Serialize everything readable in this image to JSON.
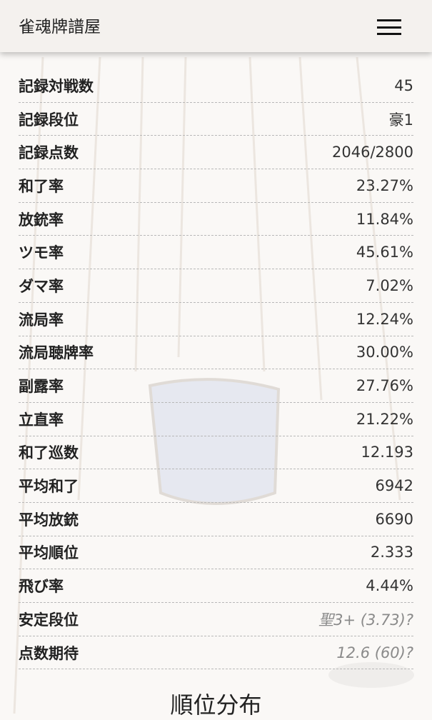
{
  "header": {
    "title": "雀魂牌譜屋",
    "menu_icon": "hamburger-icon"
  },
  "stats": [
    {
      "label": "記録対戦数",
      "value": "45"
    },
    {
      "label": "記録段位",
      "value": "豪1"
    },
    {
      "label": "記録点数",
      "value": "2046/2800"
    },
    {
      "label": "和了率",
      "value": "23.27%"
    },
    {
      "label": "放銃率",
      "value": "11.84%"
    },
    {
      "label": "ツモ率",
      "value": "45.61%"
    },
    {
      "label": "ダマ率",
      "value": "7.02%"
    },
    {
      "label": "流局率",
      "value": "12.24%"
    },
    {
      "label": "流局聴牌率",
      "value": "30.00%"
    },
    {
      "label": "副露率",
      "value": "27.76%"
    },
    {
      "label": "立直率",
      "value": "21.22%"
    },
    {
      "label": "和了巡数",
      "value": "12.193"
    },
    {
      "label": "平均和了",
      "value": "6942"
    },
    {
      "label": "平均放銃",
      "value": "6690"
    },
    {
      "label": "平均順位",
      "value": "2.333"
    },
    {
      "label": "飛び率",
      "value": "4.44%"
    },
    {
      "label": "安定段位",
      "value": "聖3+ (3.73)?",
      "estimate": true
    },
    {
      "label": "点数期待",
      "value": "12.6 (60)?",
      "estimate": true
    }
  ],
  "section_title": "順位分布"
}
